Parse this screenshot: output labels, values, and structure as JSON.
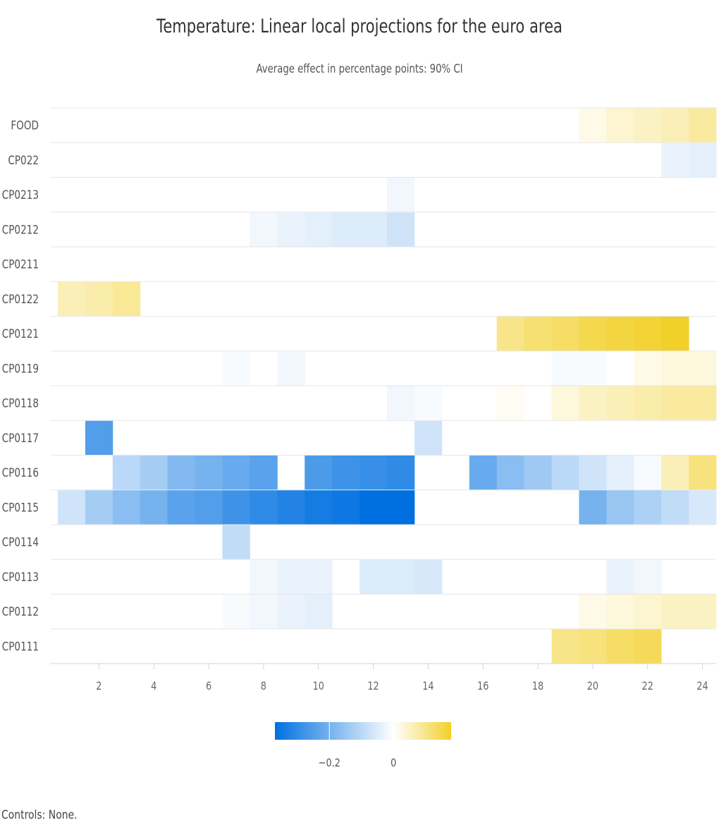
{
  "title": "Temperature: Linear local projections for the euro area",
  "subtitle": "Average effect in percentage points: 90% CI",
  "footer": "Controls: None.",
  "chart_data": {
    "type": "heatmap",
    "title": "Temperature: Linear local projections for the euro area",
    "subtitle": "Average effect in percentage points: 90% CI",
    "xlabel": "",
    "ylabel": "",
    "x": [
      1,
      2,
      3,
      4,
      5,
      6,
      7,
      8,
      9,
      10,
      11,
      12,
      13,
      14,
      15,
      16,
      17,
      18,
      19,
      20,
      21,
      22,
      23,
      24
    ],
    "x_ticks": [
      2,
      4,
      6,
      8,
      10,
      12,
      14,
      16,
      18,
      20,
      22,
      24
    ],
    "y": [
      "FOOD",
      "CP022",
      "CP0213",
      "CP0212",
      "CP0211",
      "CP0122",
      "CP0121",
      "CP0119",
      "CP0118",
      "CP0117",
      "CP0116",
      "CP0115",
      "CP0114",
      "CP0113",
      "CP0112",
      "CP0111"
    ],
    "values": [
      [
        null,
        null,
        null,
        null,
        null,
        null,
        null,
        null,
        null,
        null,
        null,
        null,
        null,
        null,
        null,
        null,
        null,
        null,
        null,
        0.02,
        0.04,
        0.05,
        0.06,
        0.08
      ],
      [
        null,
        null,
        null,
        null,
        null,
        null,
        null,
        null,
        null,
        null,
        null,
        null,
        null,
        null,
        null,
        null,
        null,
        null,
        null,
        null,
        null,
        null,
        -0.03,
        -0.04
      ],
      [
        null,
        null,
        null,
        null,
        null,
        null,
        null,
        null,
        null,
        null,
        null,
        null,
        -0.02,
        null,
        null,
        null,
        null,
        null,
        null,
        null,
        null,
        null,
        null,
        null
      ],
      [
        null,
        null,
        null,
        null,
        null,
        null,
        null,
        -0.02,
        -0.03,
        -0.04,
        -0.05,
        -0.05,
        -0.07,
        null,
        null,
        null,
        null,
        null,
        null,
        null,
        null,
        null,
        null,
        null
      ],
      [
        null,
        null,
        null,
        null,
        null,
        null,
        null,
        null,
        null,
        null,
        null,
        null,
        null,
        null,
        null,
        null,
        null,
        null,
        null,
        null,
        null,
        null,
        null,
        null
      ],
      [
        0.06,
        0.07,
        0.09,
        null,
        null,
        null,
        null,
        null,
        null,
        null,
        null,
        null,
        null,
        null,
        null,
        null,
        null,
        null,
        null,
        null,
        null,
        null,
        null,
        null
      ],
      [
        null,
        null,
        null,
        null,
        null,
        null,
        null,
        null,
        null,
        null,
        null,
        null,
        null,
        null,
        null,
        null,
        0.1,
        0.12,
        0.13,
        0.15,
        0.16,
        0.17,
        0.18,
        null
      ],
      [
        null,
        null,
        null,
        null,
        null,
        null,
        -0.01,
        null,
        -0.02,
        null,
        null,
        null,
        null,
        null,
        null,
        null,
        null,
        null,
        -0.01,
        -0.01,
        null,
        0.02,
        0.03,
        0.03
      ],
      [
        null,
        null,
        null,
        null,
        null,
        null,
        null,
        null,
        null,
        null,
        null,
        null,
        -0.02,
        -0.01,
        null,
        null,
        0.01,
        null,
        0.03,
        0.05,
        0.06,
        0.07,
        0.08,
        0.08
      ],
      [
        null,
        -0.25,
        null,
        null,
        null,
        null,
        null,
        null,
        null,
        null,
        null,
        null,
        null,
        -0.07,
        null,
        null,
        null,
        null,
        null,
        null,
        null,
        null,
        null,
        null
      ],
      [
        null,
        null,
        -0.1,
        -0.13,
        -0.18,
        -0.2,
        -0.22,
        -0.24,
        null,
        -0.26,
        -0.28,
        -0.29,
        -0.3,
        null,
        null,
        -0.22,
        -0.17,
        -0.14,
        -0.1,
        -0.07,
        -0.04,
        -0.01,
        0.06,
        0.11
      ],
      [
        -0.07,
        -0.13,
        -0.17,
        -0.2,
        -0.24,
        -0.25,
        -0.28,
        -0.3,
        -0.32,
        -0.34,
        -0.35,
        -0.37,
        -0.37,
        null,
        null,
        null,
        null,
        null,
        null,
        -0.2,
        -0.15,
        -0.12,
        -0.09,
        -0.06
      ],
      [
        null,
        null,
        null,
        null,
        null,
        null,
        -0.09,
        null,
        null,
        null,
        null,
        null,
        null,
        null,
        null,
        null,
        null,
        null,
        null,
        null,
        null,
        null,
        null,
        null
      ],
      [
        null,
        null,
        null,
        null,
        null,
        null,
        null,
        -0.02,
        -0.03,
        -0.03,
        null,
        -0.05,
        -0.05,
        -0.06,
        null,
        null,
        null,
        null,
        null,
        null,
        -0.03,
        -0.02,
        null,
        null
      ],
      [
        null,
        null,
        null,
        null,
        null,
        null,
        -0.01,
        -0.02,
        -0.03,
        -0.04,
        null,
        null,
        null,
        null,
        null,
        null,
        null,
        null,
        null,
        0.02,
        0.03,
        0.04,
        0.05,
        0.05
      ],
      [
        null,
        null,
        null,
        null,
        null,
        null,
        null,
        null,
        null,
        null,
        null,
        null,
        null,
        null,
        null,
        null,
        null,
        null,
        0.1,
        0.11,
        0.13,
        0.14,
        null,
        null
      ]
    ],
    "color_scale": {
      "min": -0.37,
      "mid": 0,
      "max": 0.18,
      "min_color": "#0070e0",
      "mid_color": "#ffffff",
      "max_color": "#f2d02a"
    },
    "legend": {
      "placement": "bottom",
      "tick_labels": [
        "-0.2",
        "0"
      ]
    },
    "grid": false
  }
}
